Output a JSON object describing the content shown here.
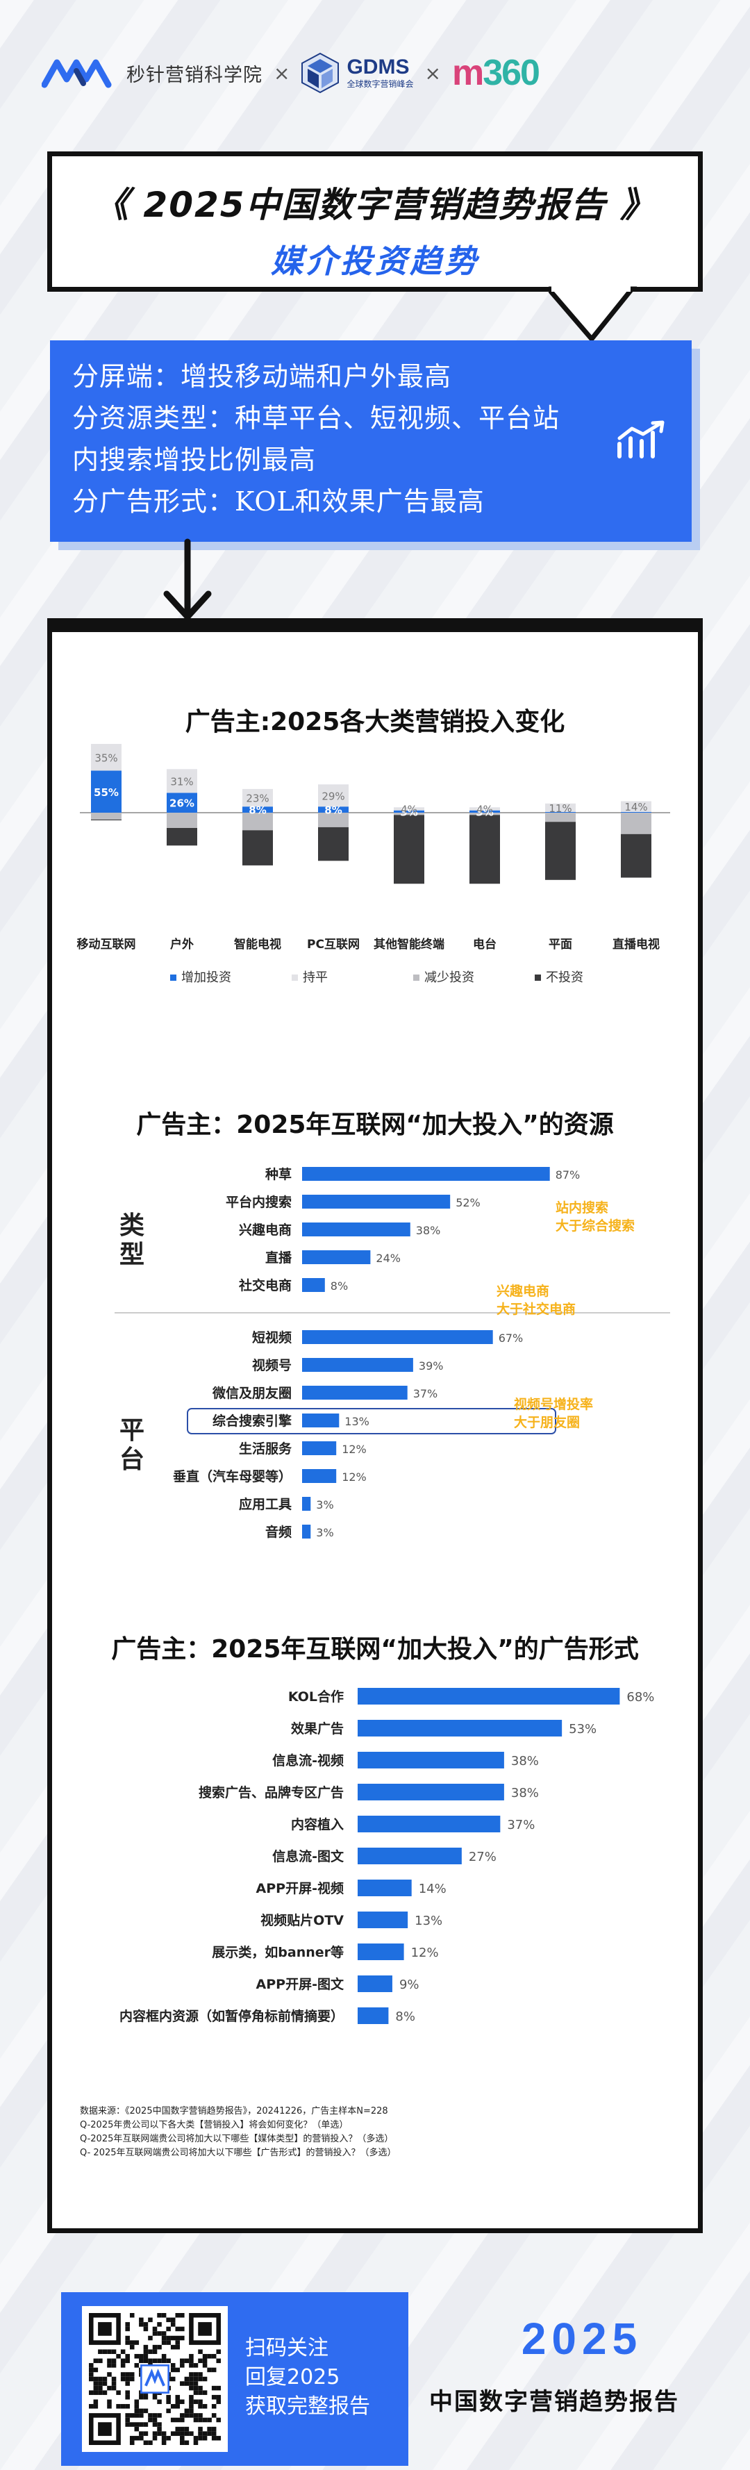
{
  "header": {
    "brand1": "秒针营销科学院",
    "sep": "×",
    "brand2": "GDMS",
    "brand2_sub": "全球数字营销峰会",
    "brand3": "m360"
  },
  "title": {
    "line1": "《 2025中国数字营销趋势报告 》",
    "line2": "媒介投资趋势"
  },
  "summary": {
    "lines": [
      "分屏端：增投移动端和户外最高",
      "分资源类型：种草平台、短视频、平台站",
      "内搜索增投比例最高",
      "分广告形式：KOL和效果广告最高"
    ]
  },
  "colors": {
    "blue": "#1f6fe0",
    "light_gray": "#e2e2e6",
    "mid_gray": "#bdbdc1",
    "dark": "#3a3a3c",
    "yellow": "#f6b21b"
  },
  "chart_data": [
    {
      "type": "bar",
      "title": "广告主:2025各大类营销投入变化",
      "categories": [
        "移动互联网",
        "户外",
        "智能电视",
        "PC互联网",
        "其他智能终端",
        "电台",
        "平面",
        "直播电视"
      ],
      "series": [
        {
          "name": "增加投资",
          "values": [
            55,
            26,
            8,
            8,
            3,
            3,
            1,
            1
          ]
        },
        {
          "name": "持平",
          "values": [
            35,
            31,
            23,
            29,
            4,
            4,
            11,
            14
          ]
        },
        {
          "name": "减少投资",
          "values": [
            9,
            20,
            23,
            19,
            3,
            3,
            12,
            28
          ]
        },
        {
          "name": "不投资",
          "values": [
            1,
            23,
            46,
            44,
            90,
            90,
            76,
            57
          ]
        }
      ],
      "data_labels": {
        "增加投资": [
          "55%",
          "26%",
          "8%",
          "8%",
          "3%",
          "3%",
          "",
          ""
        ],
        "持平": [
          "35%",
          "31%",
          "23%",
          "29%",
          "4%",
          "4%",
          "11%",
          "14%"
        ]
      },
      "legend_placement": "bottom"
    },
    {
      "type": "bar",
      "orientation": "horizontal",
      "title": "广告主：2025年互联网“加大投入”的资源",
      "groups": [
        {
          "name": "类型",
          "categories": [
            "种草",
            "平台内搜索",
            "兴趣电商",
            "直播",
            "社交电商"
          ],
          "values": [
            87,
            52,
            38,
            24,
            8
          ]
        },
        {
          "name": "平台",
          "categories": [
            "短视频",
            "视频号",
            "微信及朋友圈",
            "综合搜索引擎",
            "生活服务",
            "垂直（汽车母婴等）",
            "应用工具",
            "音频"
          ],
          "values": [
            67,
            39,
            37,
            13,
            12,
            12,
            3,
            3
          ]
        }
      ],
      "annotations": [
        "站内搜索\n大于综合搜索",
        "兴趣电商\n大于社交电商",
        "视频号增投率\n大于朋友圈"
      ],
      "highlight": "综合搜索引擎"
    },
    {
      "type": "bar",
      "orientation": "horizontal",
      "title": "广告主：2025年互联网“加大投入”的广告形式",
      "categories": [
        "KOL合作",
        "效果广告",
        "信息流-视频",
        "搜索广告、品牌专区广告",
        "内容植入",
        "信息流-图文",
        "APP开屏-视频",
        "视频贴片OTV",
        "展示类，如banner等",
        "APP开屏-图文",
        "内容框内资源（如暂停角标前情摘要）"
      ],
      "values": [
        68,
        53,
        38,
        38,
        37,
        27,
        14,
        13,
        12,
        9,
        8
      ]
    }
  ],
  "footnote": [
    "数据来源：《2025中国数字营销趋势报告》，20241226，广告主样本N=228",
    "Q-2025年贵公司以下各大类【营销投入】将会如何变化？（单选）",
    "Q-2025年互联网端贵公司将加大以下哪些【媒体类型】的营销投入？（多选）",
    "Q- 2025年互联网端贵公司将加大以下哪些【广告形式】的营销投入？（多选）"
  ],
  "bottom": {
    "qr_lines": [
      "扫码关注",
      "回复2025",
      "获取完整报告"
    ],
    "year": "2025",
    "report": "中国数字营销趋势报告"
  }
}
